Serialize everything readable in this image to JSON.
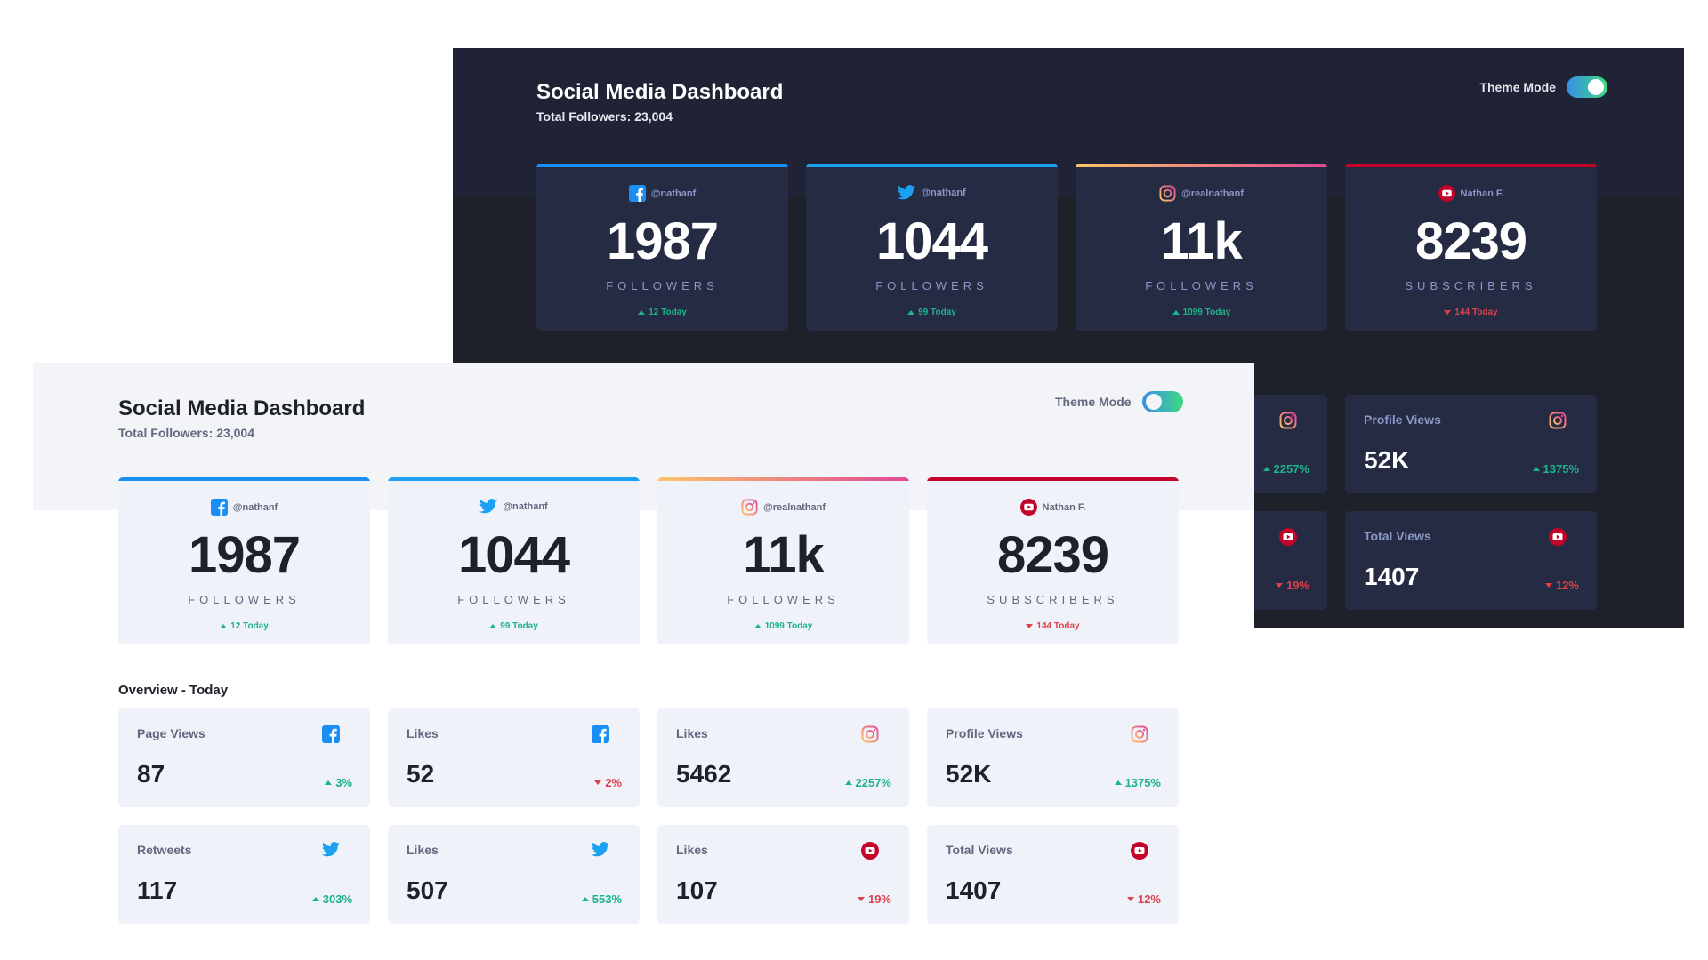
{
  "dark": {
    "title": "Social Media Dashboard",
    "subtitle": "Total Followers: 23,004",
    "theme_label": "Theme Mode",
    "followers": [
      {
        "platform": "facebook",
        "icon": "facebook-icon",
        "handle": "@nathanf",
        "count": "1987",
        "unit": "FOLLOWERS",
        "today": "12 Today",
        "trend": "up"
      },
      {
        "platform": "twitter",
        "icon": "twitter-icon",
        "handle": "@nathanf",
        "count": "1044",
        "unit": "FOLLOWERS",
        "today": "99 Today",
        "trend": "up"
      },
      {
        "platform": "instagram",
        "icon": "instagram-icon",
        "handle": "@realnathanf",
        "count": "11k",
        "unit": "FOLLOWERS",
        "today": "1099 Today",
        "trend": "up"
      },
      {
        "platform": "youtube",
        "icon": "youtube-icon",
        "handle": "Nathan F.",
        "count": "8239",
        "unit": "SUBSCRIBERS",
        "today": "144 Today",
        "trend": "down"
      }
    ],
    "overview_partial": [
      {
        "icon": "instagram-icon",
        "pct": "2257%",
        "trend": "up"
      },
      {
        "label": "Profile Views",
        "icon": "instagram-icon",
        "value": "52K",
        "pct": "1375%",
        "trend": "up"
      },
      {
        "icon": "youtube-icon",
        "pct": "19%",
        "trend": "down"
      },
      {
        "label": "Total Views",
        "icon": "youtube-icon",
        "value": "1407",
        "pct": "12%",
        "trend": "down"
      }
    ]
  },
  "light": {
    "title": "Social Media Dashboard",
    "subtitle": "Total Followers: 23,004",
    "theme_label": "Theme Mode",
    "followers": [
      {
        "platform": "facebook",
        "icon": "facebook-icon",
        "handle": "@nathanf",
        "count": "1987",
        "unit": "FOLLOWERS",
        "today": "12 Today",
        "trend": "up"
      },
      {
        "platform": "twitter",
        "icon": "twitter-icon",
        "handle": "@nathanf",
        "count": "1044",
        "unit": "FOLLOWERS",
        "today": "99 Today",
        "trend": "up"
      },
      {
        "platform": "instagram",
        "icon": "instagram-icon",
        "handle": "@realnathanf",
        "count": "11k",
        "unit": "FOLLOWERS",
        "today": "1099 Today",
        "trend": "up"
      },
      {
        "platform": "youtube",
        "icon": "youtube-icon",
        "handle": "Nathan F.",
        "count": "8239",
        "unit": "SUBSCRIBERS",
        "today": "144 Today",
        "trend": "down"
      }
    ],
    "overview_title": "Overview - Today",
    "overview": [
      {
        "label": "Page Views",
        "icon": "facebook-icon",
        "value": "87",
        "pct": "3%",
        "trend": "up"
      },
      {
        "label": "Likes",
        "icon": "facebook-icon",
        "value": "52",
        "pct": "2%",
        "trend": "down"
      },
      {
        "label": "Likes",
        "icon": "instagram-icon",
        "value": "5462",
        "pct": "2257%",
        "trend": "up"
      },
      {
        "label": "Profile Views",
        "icon": "instagram-icon",
        "value": "52K",
        "pct": "1375%",
        "trend": "up"
      },
      {
        "label": "Retweets",
        "icon": "twitter-icon",
        "value": "117",
        "pct": "303%",
        "trend": "up"
      },
      {
        "label": "Likes",
        "icon": "twitter-icon",
        "value": "507",
        "pct": "553%",
        "trend": "up"
      },
      {
        "label": "Likes",
        "icon": "youtube-icon",
        "value": "107",
        "pct": "19%",
        "trend": "down"
      },
      {
        "label": "Total Views",
        "icon": "youtube-icon",
        "value": "1407",
        "pct": "12%",
        "trend": "down"
      }
    ]
  },
  "colors": {
    "facebook": "#198ff5",
    "twitter": "#1ca0f2",
    "instagram_start": "#fdc468",
    "instagram_end": "#df4996",
    "youtube": "#c4032a",
    "up": "#1db489",
    "down": "#dc414c",
    "dark_bg": "#1e202a",
    "dark_card": "#252b43",
    "light_bg": "#ffffff",
    "light_card": "#f0f2fa"
  }
}
